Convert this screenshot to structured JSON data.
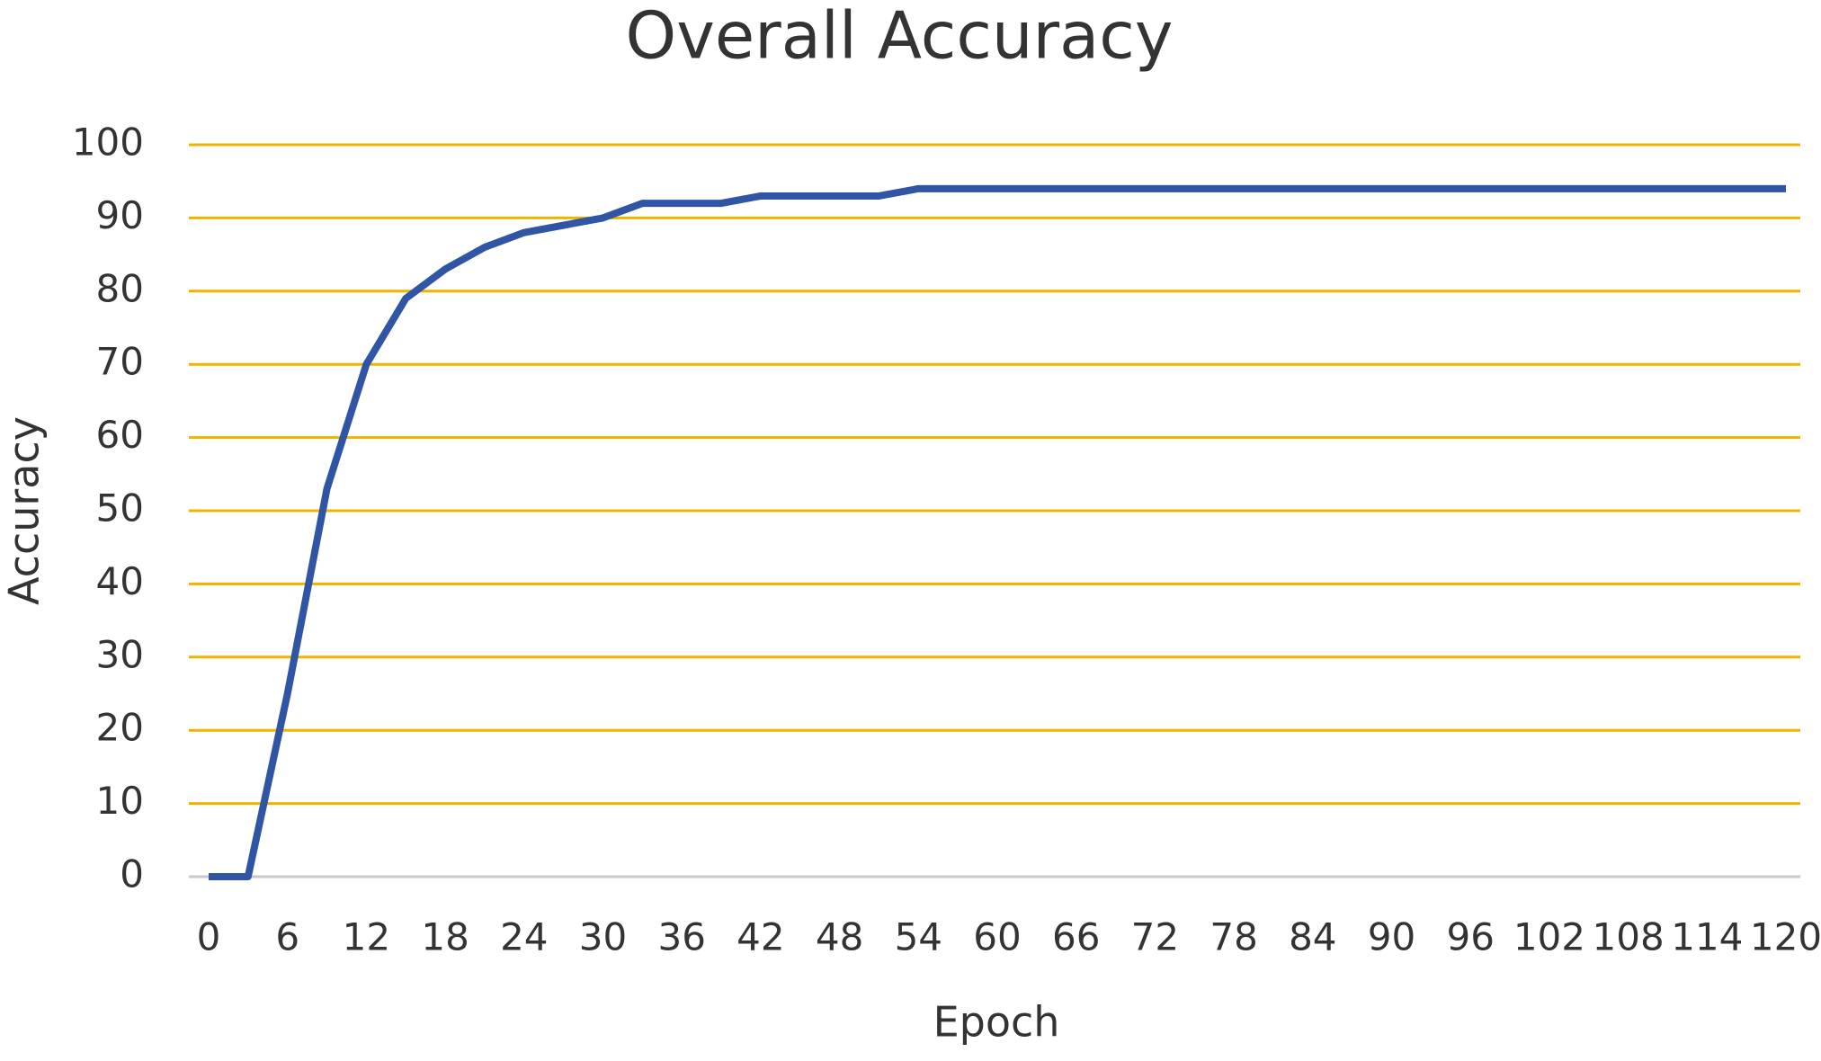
{
  "chart_data": {
    "type": "line",
    "title": "Overall Accuracy",
    "x_label": "Epoch",
    "y_label": "Accuracy",
    "x": [
      0,
      3,
      6,
      9,
      12,
      15,
      18,
      21,
      24,
      27,
      30,
      33,
      36,
      39,
      42,
      45,
      48,
      51,
      54,
      57,
      60,
      63,
      66,
      69,
      72,
      75,
      78,
      81,
      84,
      87,
      90,
      93,
      96,
      99,
      102,
      105,
      108,
      111,
      114,
      117,
      120
    ],
    "series": [
      {
        "name": "Accuracy",
        "color": "#2f55a4",
        "values": [
          0,
          0,
          25,
          53,
          70,
          79,
          83,
          86,
          88,
          89,
          90,
          92,
          92,
          92,
          93,
          93,
          93,
          93,
          94,
          94,
          94,
          94,
          94,
          94,
          94,
          94,
          94,
          94,
          94,
          94,
          94,
          94,
          94,
          94,
          94,
          94,
          94,
          94,
          94,
          94,
          94
        ]
      }
    ],
    "xlim": [
      0,
      120
    ],
    "xticks": [
      0,
      6,
      12,
      18,
      24,
      30,
      36,
      42,
      48,
      54,
      60,
      66,
      72,
      78,
      84,
      90,
      96,
      102,
      108,
      114,
      120
    ],
    "ylim": [
      0,
      100
    ],
    "yticks": [
      0,
      10,
      20,
      30,
      40,
      50,
      60,
      70,
      80,
      90,
      100
    ],
    "grid": true,
    "grid_color": "#f0b400"
  }
}
